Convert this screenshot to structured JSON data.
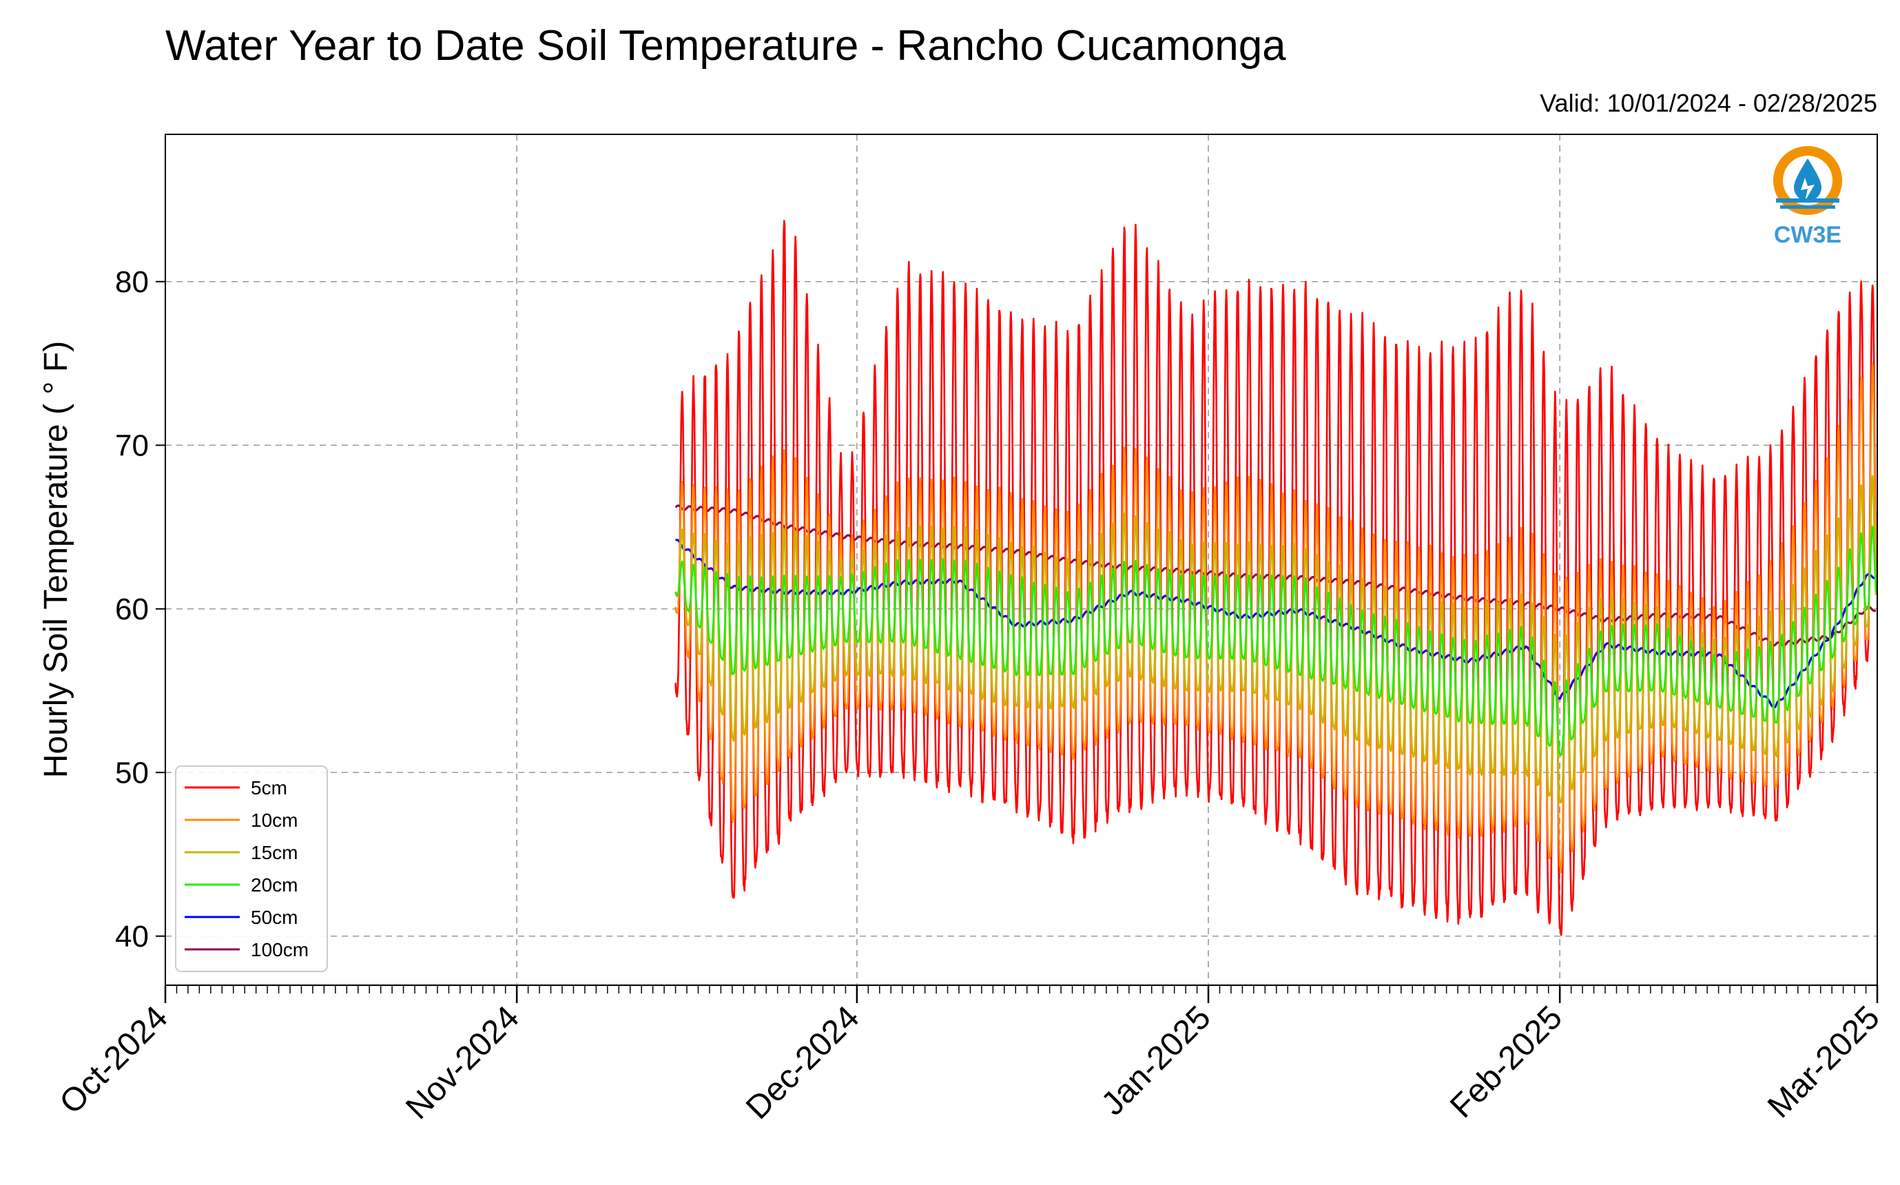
{
  "header": {
    "title": "Water Year to Date Soil Temperature - Rancho Cucamonga",
    "valid": "Valid: 10/01/2024 - 02/28/2025"
  },
  "logo": {
    "text": "CW3E",
    "icon": "water-drop-logo-icon",
    "ring_color": "#f39200",
    "accent_color": "#1a8ccc"
  },
  "chart_data": {
    "type": "line",
    "title": "Water Year to Date Soil Temperature - Rancho Cucamonga",
    "subtitle": "Valid: 10/01/2024 - 02/28/2025",
    "xlabel": "",
    "ylabel": "Hourly Soil Temperature ( ° F)",
    "x_range": [
      "2024-10-01",
      "2025-03-01"
    ],
    "ylim": [
      37,
      89
    ],
    "yticks": [
      40,
      50,
      60,
      70,
      80
    ],
    "xticks": [
      {
        "date": "2024-10-01",
        "label": "Oct-2024"
      },
      {
        "date": "2024-11-01",
        "label": "Nov-2024"
      },
      {
        "date": "2024-12-01",
        "label": "Dec-2024"
      },
      {
        "date": "2025-01-01",
        "label": "Jan-2025"
      },
      {
        "date": "2025-02-01",
        "label": "Feb-2025"
      },
      {
        "date": "2025-03-01",
        "label": "Mar-2025"
      }
    ],
    "grid": true,
    "legend_position": "lower-left",
    "dates": [
      "2024-11-15",
      "2024-11-20",
      "2024-11-25",
      "2024-11-30",
      "2024-12-05",
      "2024-12-10",
      "2024-12-15",
      "2024-12-20",
      "2024-12-25",
      "2024-12-30",
      "2025-01-04",
      "2025-01-09",
      "2025-01-14",
      "2025-01-19",
      "2025-01-24",
      "2025-01-29",
      "2025-02-01",
      "2025-02-05",
      "2025-02-10",
      "2025-02-15",
      "2025-02-20",
      "2025-02-25",
      "2025-02-28"
    ],
    "series": [
      {
        "name": "5cm",
        "color": "#ff0000",
        "daily_max": [
          73.0,
          76.0,
          85.0,
          68.0,
          81.0,
          80.0,
          78.0,
          77.0,
          84.0,
          78.0,
          80.0,
          80.0,
          78.0,
          76.0,
          76.0,
          80.0,
          72.0,
          75.0,
          70.0,
          68.0,
          70.0,
          78.0,
          80.0
        ],
        "daily_min": [
          55.0,
          42.0,
          47.0,
          50.0,
          50.0,
          49.0,
          48.0,
          46.0,
          48.0,
          49.0,
          48.0,
          46.0,
          43.0,
          42.0,
          41.0,
          43.0,
          40.0,
          47.0,
          48.0,
          48.0,
          47.0,
          52.0,
          57.0
        ]
      },
      {
        "name": "10cm",
        "color": "#ff8c00",
        "daily_max": [
          68.0,
          67.0,
          70.0,
          64.0,
          68.0,
          68.0,
          67.0,
          66.0,
          70.0,
          67.0,
          68.0,
          67.0,
          65.0,
          64.0,
          63.0,
          65.0,
          62.0,
          63.0,
          62.0,
          60.0,
          63.0,
          70.0,
          75.0
        ],
        "daily_min": [
          60.0,
          47.0,
          51.0,
          54.0,
          54.0,
          53.0,
          52.0,
          51.0,
          53.0,
          53.0,
          52.0,
          51.0,
          48.0,
          47.0,
          46.0,
          47.0,
          44.0,
          49.0,
          51.0,
          50.0,
          49.0,
          54.0,
          58.0
        ]
      },
      {
        "name": "15cm",
        "color": "#c8b400",
        "daily_max": [
          65.0,
          64.0,
          65.0,
          63.0,
          65.0,
          65.0,
          64.0,
          63.0,
          66.0,
          64.0,
          64.0,
          64.0,
          62.0,
          61.0,
          60.0,
          61.0,
          58.0,
          61.0,
          60.0,
          58.0,
          60.0,
          65.0,
          68.0
        ],
        "daily_min": [
          61.0,
          52.0,
          54.0,
          56.0,
          56.0,
          55.0,
          54.0,
          54.0,
          56.0,
          55.0,
          55.0,
          54.0,
          52.0,
          51.0,
          50.0,
          50.0,
          48.0,
          52.0,
          53.0,
          52.0,
          51.0,
          55.0,
          59.0
        ]
      },
      {
        "name": "20cm",
        "color": "#22ee00",
        "daily_max": [
          63.0,
          62.0,
          62.0,
          62.0,
          63.0,
          63.0,
          62.0,
          61.0,
          63.0,
          62.0,
          62.0,
          62.0,
          60.0,
          59.0,
          58.0,
          59.0,
          55.0,
          59.0,
          59.0,
          57.0,
          58.0,
          62.0,
          65.0
        ],
        "daily_min": [
          61.0,
          56.0,
          57.0,
          58.0,
          58.0,
          57.0,
          56.0,
          56.0,
          58.0,
          57.0,
          57.0,
          56.0,
          55.0,
          54.0,
          53.0,
          53.0,
          51.0,
          55.0,
          55.0,
          54.0,
          53.0,
          57.0,
          60.0
        ]
      },
      {
        "name": "50cm",
        "color": "#0000ee",
        "values": [
          64.2,
          61.3,
          61.0,
          61.0,
          61.6,
          61.7,
          59.0,
          59.3,
          61.0,
          60.5,
          59.5,
          59.9,
          58.8,
          57.5,
          56.8,
          57.7,
          54.5,
          57.8,
          57.3,
          57.2,
          54.0,
          58.5,
          62.0
        ]
      },
      {
        "name": "100cm",
        "color": "#8b0a50",
        "values": [
          66.2,
          66.0,
          65.0,
          64.4,
          64.0,
          63.8,
          63.5,
          62.9,
          62.5,
          62.3,
          62.0,
          61.9,
          61.6,
          61.1,
          60.6,
          60.3,
          60.0,
          59.3,
          59.6,
          59.5,
          57.8,
          58.3,
          60.0
        ]
      }
    ]
  }
}
